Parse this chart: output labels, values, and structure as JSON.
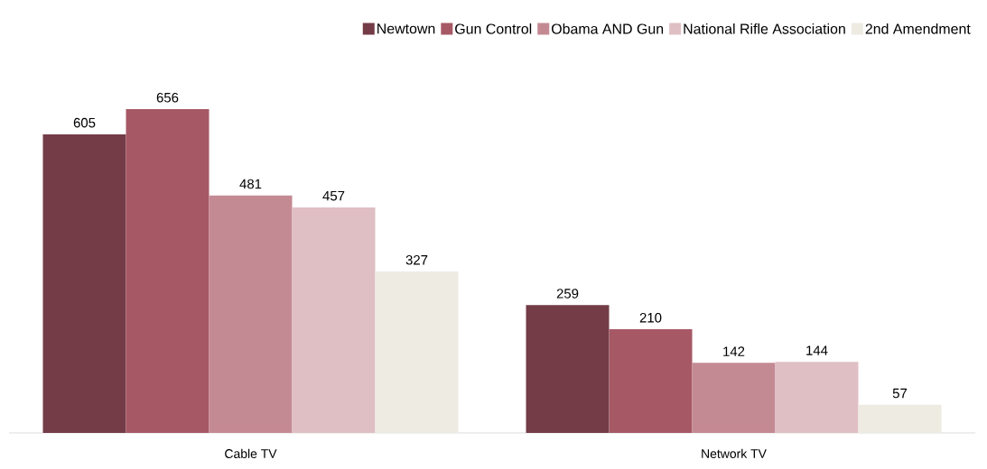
{
  "chart_data": {
    "type": "bar",
    "categories": [
      "Cable TV",
      "Network TV"
    ],
    "series": [
      {
        "name": "Newtown",
        "color": "#733c47",
        "values": [
          605,
          259
        ]
      },
      {
        "name": "Gun Control",
        "color": "#a65865",
        "values": [
          656,
          210
        ]
      },
      {
        "name": "Obama AND Gun",
        "color": "#c48a94",
        "values": [
          481,
          142
        ]
      },
      {
        "name": "National Rifle Association",
        "color": "#dfbfc4",
        "values": [
          457,
          144
        ]
      },
      {
        "name": "2nd Amendment",
        "color": "#eeebe3",
        "values": [
          327,
          57
        ]
      }
    ],
    "data_labels": true,
    "legend": "top right"
  }
}
